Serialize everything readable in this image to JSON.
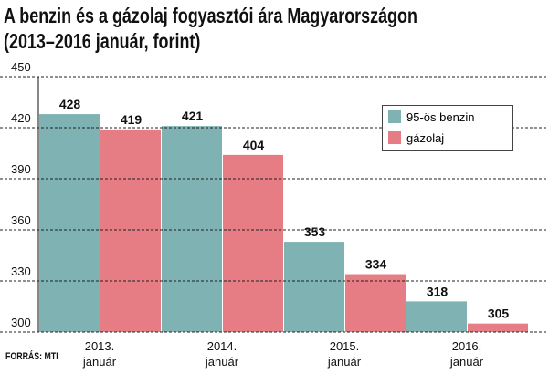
{
  "chart_data": {
    "type": "bar",
    "title_lines": [
      "A benzin és a gázolaj fogyasztói ára Magyarországon",
      "(2013–2016 január, forint)"
    ],
    "categories": [
      [
        "2013.",
        "január"
      ],
      [
        "2014.",
        "január"
      ],
      [
        "2015.",
        "január"
      ],
      [
        "2016.",
        "január"
      ]
    ],
    "series": [
      {
        "name": "95-ös benzin",
        "color": "#7fb3b3",
        "values": [
          428,
          421,
          353,
          318
        ]
      },
      {
        "name": "gázolaj",
        "color": "#e67c84",
        "values": [
          419,
          404,
          334,
          305
        ]
      }
    ],
    "ylim": [
      300,
      450
    ],
    "yticks": [
      300,
      330,
      360,
      390,
      420,
      450
    ],
    "grid": true,
    "legend_position": "top-right",
    "source": "FORRÁS: MTI"
  }
}
